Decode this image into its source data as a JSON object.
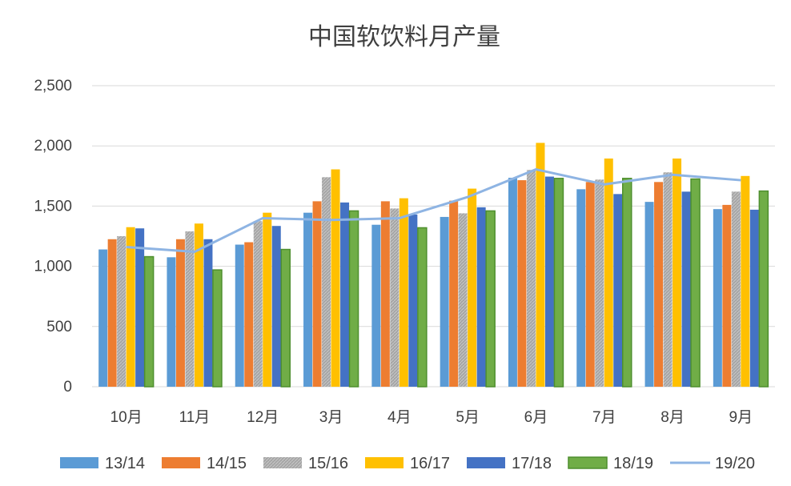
{
  "chart_data": {
    "type": "bar",
    "title": "中国软饮料月产量",
    "categories": [
      "10月",
      "11月",
      "12月",
      "3月",
      "4月",
      "5月",
      "6月",
      "7月",
      "8月",
      "9月"
    ],
    "ylim": [
      0,
      2500
    ],
    "yticks": [
      0,
      500,
      1000,
      1500,
      2000,
      2500
    ],
    "ytick_labels": [
      "0",
      "500",
      "1,000",
      "1,500",
      "2,000",
      "2,500"
    ],
    "grid": true,
    "legend_position": "bottom",
    "series": [
      {
        "name": "13/14",
        "type": "bar",
        "color": "#5B9BD5",
        "values": [
          1140,
          1075,
          1180,
          1445,
          1345,
          1410,
          1735,
          1640,
          1535,
          1475
        ]
      },
      {
        "name": "14/15",
        "type": "bar",
        "color": "#ED7D31",
        "values": [
          1225,
          1225,
          1200,
          1540,
          1540,
          1545,
          1715,
          1700,
          1700,
          1510
        ]
      },
      {
        "name": "15/16",
        "type": "bar",
        "color": "#A5A5A5",
        "pattern": "stripes",
        "values": [
          1250,
          1290,
          1375,
          1740,
          1480,
          1440,
          1800,
          1720,
          1780,
          1620
        ]
      },
      {
        "name": "16/17",
        "type": "bar",
        "color": "#FFC000",
        "values": [
          1325,
          1355,
          1445,
          1805,
          1565,
          1645,
          2025,
          1895,
          1895,
          1750
        ]
      },
      {
        "name": "17/18",
        "type": "bar",
        "color": "#4472C4",
        "values": [
          1315,
          1225,
          1335,
          1530,
          1430,
          1490,
          1745,
          1600,
          1620,
          1470
        ]
      },
      {
        "name": "18/19",
        "type": "bar",
        "color": "#70AD47",
        "outline": "#4E8F2E",
        "values": [
          1080,
          970,
          1140,
          1460,
          1320,
          1460,
          1730,
          1730,
          1725,
          1625
        ]
      },
      {
        "name": "19/20",
        "type": "line",
        "color": "#8EB4E3",
        "values": [
          1160,
          1120,
          1400,
          1385,
          1400,
          1575,
          1805,
          1680,
          1760,
          1715
        ]
      }
    ]
  }
}
